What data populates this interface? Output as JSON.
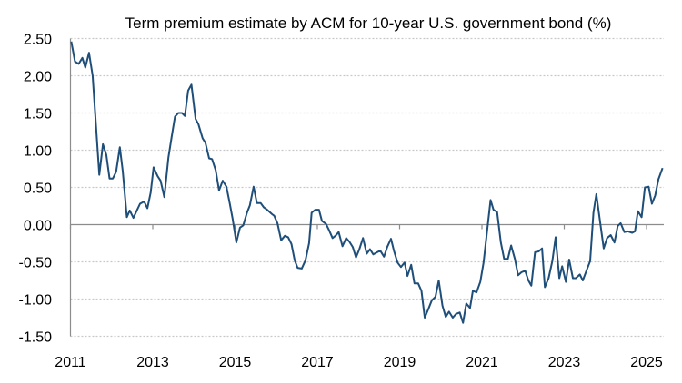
{
  "chart_data": {
    "type": "line",
    "title": "Term premium estimate by ACM for 10-year U.S. government bond (%)",
    "xlabel": "",
    "ylabel": "",
    "xlim": [
      2011,
      2025.42
    ],
    "ylim": [
      -1.5,
      2.5
    ],
    "x_ticks": [
      "2011",
      "2013",
      "2015",
      "2017",
      "2019",
      "2021",
      "2023",
      "2025"
    ],
    "y_ticks": [
      "2.50",
      "2.00",
      "1.50",
      "1.00",
      "0.50",
      "0.00",
      "-0.50",
      "-1.00",
      "-1.50"
    ],
    "grid": "horizontal dashed",
    "legend": "none",
    "colors": {
      "line": "#1f4e79",
      "grid": "#c8c8c8",
      "axis": "#8c8c8c"
    },
    "series": [
      {
        "x": [
          2011.02,
          2011.11,
          2011.2,
          2011.29,
          2011.36,
          2011.45,
          2011.54,
          2011.7,
          2011.79,
          2011.87,
          2011.95,
          2012.03,
          2012.11,
          2012.2,
          2012.27,
          2012.37,
          2012.44,
          2012.53,
          2012.69,
          2012.79,
          2012.87,
          2012.95,
          2013.02,
          2013.12,
          2013.19,
          2013.28,
          2013.38,
          2013.46,
          2013.54,
          2013.62,
          2013.71,
          2013.78,
          2013.86,
          2013.94,
          2014.04,
          2014.11,
          2014.21,
          2014.28,
          2014.37,
          2014.44,
          2014.53,
          2014.61,
          2014.7,
          2014.79,
          2014.87,
          2014.94,
          2015.03,
          2015.12,
          2015.2,
          2015.29,
          2015.36,
          2015.45,
          2015.53,
          2015.62,
          2015.7,
          2015.78,
          2015.9,
          2015.95,
          2016.03,
          2016.12,
          2016.21,
          2016.29,
          2016.37,
          2016.45,
          2016.52,
          2016.62,
          2016.71,
          2016.8,
          2016.86,
          2016.95,
          2017.04,
          2017.11,
          2017.21,
          2017.28,
          2017.37,
          2017.44,
          2017.52,
          2017.61,
          2017.7,
          2017.78,
          2017.86,
          2017.94,
          2018.02,
          2018.11,
          2018.2,
          2018.28,
          2018.36,
          2018.46,
          2018.53,
          2018.62,
          2018.7,
          2018.79,
          2018.86,
          2018.95,
          2019.03,
          2019.12,
          2019.19,
          2019.28,
          2019.36,
          2019.45,
          2019.53,
          2019.61,
          2019.7,
          2019.78,
          2019.87,
          2019.95,
          2020.04,
          2020.12,
          2020.2,
          2020.29,
          2020.37,
          2020.46,
          2020.54,
          2020.62,
          2020.71,
          2020.78,
          2020.87,
          2020.96,
          2021.04,
          2021.11,
          2021.21,
          2021.28,
          2021.37,
          2021.46,
          2021.54,
          2021.63,
          2021.71,
          2021.8,
          2021.88,
          2021.96,
          2022.05,
          2022.13,
          2022.2,
          2022.29,
          2022.38,
          2022.46,
          2022.53,
          2022.62,
          2022.71,
          2022.79,
          2022.88,
          2022.95,
          2023.04,
          2023.12,
          2023.21,
          2023.28,
          2023.38,
          2023.45,
          2023.54,
          2023.63,
          2023.71,
          2023.78,
          2023.87,
          2023.96,
          2024.04,
          2024.13,
          2024.22,
          2024.3,
          2024.37,
          2024.46,
          2024.55,
          2024.65,
          2024.72,
          2024.79,
          2024.88,
          2024.96,
          2025.05,
          2025.13,
          2025.21,
          2025.29,
          2025.39
        ],
        "values": [
          2.46,
          2.19,
          2.16,
          2.24,
          2.11,
          2.31,
          2.0,
          0.67,
          1.08,
          0.94,
          0.62,
          0.62,
          0.71,
          1.04,
          0.72,
          0.1,
          0.19,
          0.09,
          0.28,
          0.31,
          0.22,
          0.43,
          0.77,
          0.65,
          0.59,
          0.37,
          0.9,
          1.18,
          1.45,
          1.5,
          1.5,
          1.46,
          1.8,
          1.88,
          1.42,
          1.35,
          1.16,
          1.1,
          0.89,
          0.88,
          0.73,
          0.46,
          0.59,
          0.51,
          0.29,
          0.08,
          -0.24,
          -0.04,
          -0.01,
          0.16,
          0.26,
          0.51,
          0.29,
          0.29,
          0.23,
          0.2,
          0.14,
          0.12,
          0.02,
          -0.21,
          -0.15,
          -0.17,
          -0.26,
          -0.48,
          -0.58,
          -0.59,
          -0.48,
          -0.25,
          0.16,
          0.2,
          0.2,
          0.05,
          0.01,
          -0.07,
          -0.18,
          -0.15,
          -0.1,
          -0.29,
          -0.18,
          -0.23,
          -0.3,
          -0.44,
          -0.33,
          -0.18,
          -0.39,
          -0.33,
          -0.4,
          -0.37,
          -0.35,
          -0.43,
          -0.3,
          -0.19,
          -0.35,
          -0.51,
          -0.57,
          -0.51,
          -0.69,
          -0.54,
          -0.79,
          -0.79,
          -0.89,
          -1.25,
          -1.13,
          -1.02,
          -0.97,
          -0.75,
          -1.09,
          -1.24,
          -1.17,
          -1.25,
          -1.2,
          -1.18,
          -1.32,
          -1.06,
          -1.12,
          -0.89,
          -0.91,
          -0.77,
          -0.51,
          -0.16,
          0.33,
          0.2,
          0.17,
          -0.24,
          -0.46,
          -0.46,
          -0.28,
          -0.46,
          -0.68,
          -0.64,
          -0.62,
          -0.75,
          -0.82,
          -0.37,
          -0.36,
          -0.32,
          -0.84,
          -0.72,
          -0.49,
          -0.17,
          -0.72,
          -0.56,
          -0.77,
          -0.47,
          -0.72,
          -0.72,
          -0.67,
          -0.75,
          -0.62,
          -0.49,
          0.16,
          0.41,
          0.04,
          -0.32,
          -0.18,
          -0.14,
          -0.24,
          -0.02,
          0.02,
          -0.1,
          -0.09,
          -0.11,
          -0.09,
          0.18,
          0.1,
          0.5,
          0.51,
          0.28,
          0.39,
          0.61,
          0.76
        ]
      }
    ]
  }
}
